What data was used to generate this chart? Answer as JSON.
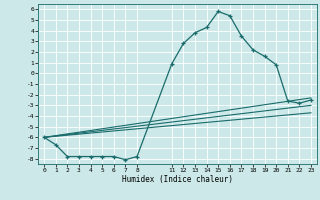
{
  "xlabel": "Humidex (Indice chaleur)",
  "background_color": "#cce8e8",
  "grid_color": "#ffffff",
  "line_color": "#1a6b6b",
  "xlim": [
    -0.5,
    23.5
  ],
  "ylim": [
    -8.5,
    6.5
  ],
  "xtick_vals": [
    0,
    1,
    2,
    3,
    4,
    5,
    6,
    7,
    8,
    11,
    12,
    13,
    14,
    15,
    16,
    17,
    18,
    19,
    20,
    21,
    22,
    23
  ],
  "xtick_labels": [
    "0",
    "1",
    "2",
    "3",
    "4",
    "5",
    "6",
    "7",
    "8",
    "11",
    "12",
    "13",
    "14",
    "15",
    "16",
    "17",
    "18",
    "19",
    "20",
    "21",
    "22",
    "23"
  ],
  "ytick_vals": [
    6,
    5,
    4,
    3,
    2,
    1,
    0,
    -1,
    -2,
    -3,
    -4,
    -5,
    -6,
    -7,
    -8
  ],
  "ytick_labels": [
    "6",
    "5",
    "4",
    "3",
    "2",
    "1",
    "0",
    "-1",
    "-2",
    "-3",
    "-4",
    "-5",
    "-6",
    "-7",
    "-8"
  ],
  "main_x": [
    0,
    1,
    2,
    3,
    4,
    5,
    6,
    7,
    8,
    11,
    12,
    13,
    14,
    15,
    16,
    17,
    18,
    19,
    20,
    21,
    22,
    23
  ],
  "main_y": [
    -6.0,
    -6.7,
    -7.8,
    -7.8,
    -7.8,
    -7.8,
    -7.8,
    -8.1,
    -7.8,
    0.9,
    2.8,
    3.8,
    4.3,
    5.8,
    5.4,
    3.5,
    2.2,
    1.6,
    0.8,
    -2.6,
    -2.8,
    -2.5
  ],
  "line2_x": [
    0,
    23
  ],
  "line2_y": [
    -6.0,
    -2.3
  ],
  "line3_x": [
    0,
    23
  ],
  "line3_y": [
    -6.0,
    -3.0
  ],
  "line4_x": [
    0,
    23
  ],
  "line4_y": [
    -6.0,
    -3.7
  ]
}
